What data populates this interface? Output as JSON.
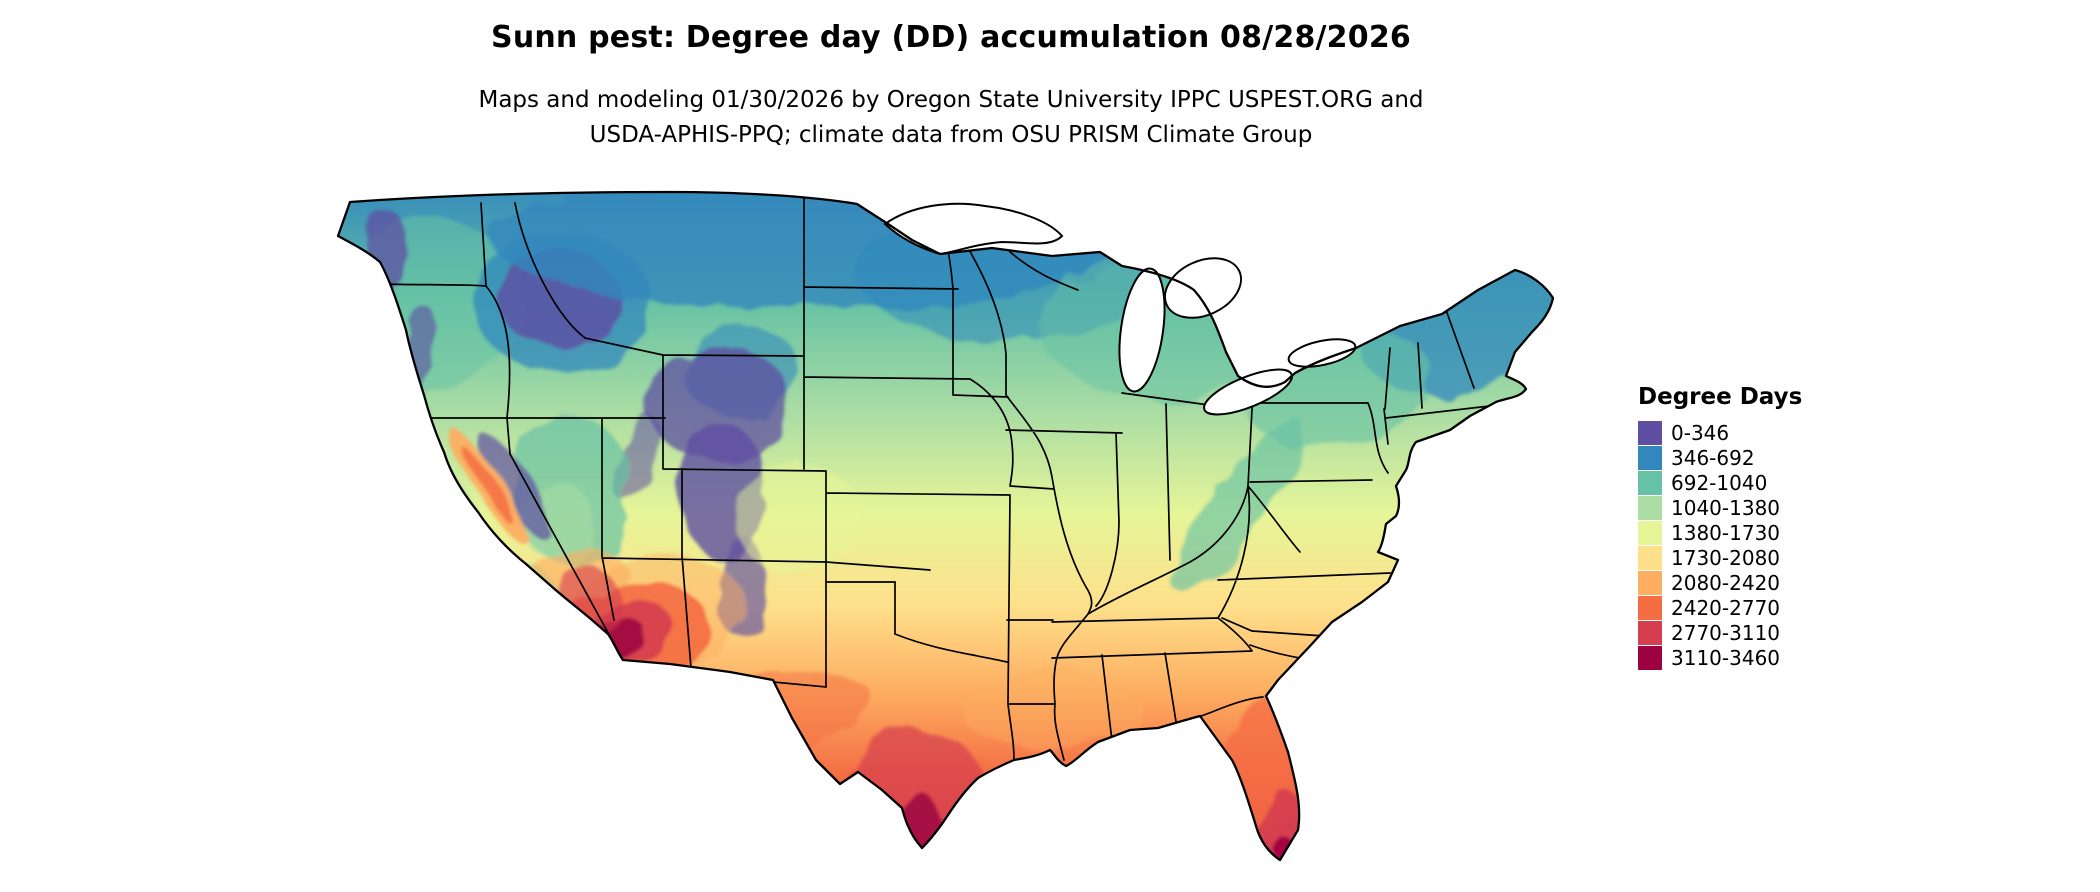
{
  "page": {
    "background": "#ffffff"
  },
  "header": {
    "title": "Sunn pest: Degree day (DD) accumulation 08/28/2026",
    "subtitle_line1": "Maps and modeling 01/30/2026 by Oregon State University IPPC USPEST.ORG and",
    "subtitle_line2": "USDA-APHIS-PPQ; climate data from OSU PRISM Climate Group"
  },
  "map": {
    "region": "Continental United States",
    "kind": "degree-day accumulation raster with state boundaries"
  },
  "legend": {
    "title": "Degree Days",
    "entries": [
      {
        "label": "0-346",
        "color": "#5e4fa2"
      },
      {
        "label": "346-692",
        "color": "#3288bd"
      },
      {
        "label": "692-1040",
        "color": "#66c2a5"
      },
      {
        "label": "1040-1380",
        "color": "#abdda4"
      },
      {
        "label": "1380-1730",
        "color": "#e6f598"
      },
      {
        "label": "1730-2080",
        "color": "#fee08b"
      },
      {
        "label": "2080-2420",
        "color": "#fdae61"
      },
      {
        "label": "2420-2770",
        "color": "#f46d43"
      },
      {
        "label": "2770-3110",
        "color": "#d53e4f"
      },
      {
        "label": "3110-3460",
        "color": "#9e0142"
      }
    ]
  },
  "chart_data": {
    "type": "heatmap",
    "title": "Sunn pest: Degree day (DD) accumulation 08/28/2026",
    "legend_title": "Degree Days",
    "units": "accumulated degree days",
    "region": "Continental United States",
    "bins": [
      {
        "min": 0,
        "max": 346,
        "color": "#5e4fa2"
      },
      {
        "min": 346,
        "max": 692,
        "color": "#3288bd"
      },
      {
        "min": 692,
        "max": 1040,
        "color": "#66c2a5"
      },
      {
        "min": 1040,
        "max": 1380,
        "color": "#abdda4"
      },
      {
        "min": 1380,
        "max": 1730,
        "color": "#e6f598"
      },
      {
        "min": 1730,
        "max": 2080,
        "color": "#fee08b"
      },
      {
        "min": 2080,
        "max": 2420,
        "color": "#fdae61"
      },
      {
        "min": 2420,
        "max": 2770,
        "color": "#f46d43"
      },
      {
        "min": 2770,
        "max": 3110,
        "color": "#d53e4f"
      },
      {
        "min": 3110,
        "max": 3460,
        "color": "#9e0142"
      }
    ],
    "pattern": "Lowest accumulations (purple/blue) over the northern Rockies, Wyoming, Colorado mountains and northern tier; mid greens across the Plains, Midwest and Northeast; yellows through the mid-South; oranges along the Gulf and Southeast; highest accumulations (red/maroon) in southern Arizona, south Texas and south Florida."
  }
}
